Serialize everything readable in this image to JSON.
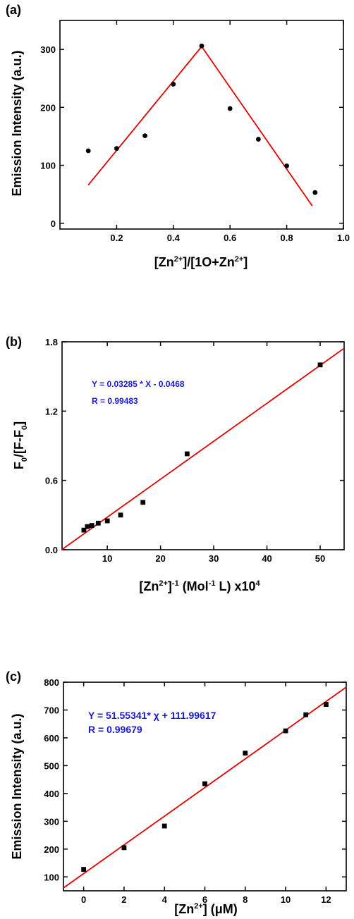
{
  "chart_data": [
    {
      "panel_label": "(a)",
      "type": "scatter",
      "xlabel": "[Zn2+]/[1O+Zn2+]",
      "ylabel": "Emission Intensity (a.u.)",
      "xlim": [
        0.0,
        1.0
      ],
      "ylim": [
        -10,
        350
      ],
      "xticks": [
        0.2,
        0.4,
        0.6,
        0.8,
        1.0
      ],
      "yticks": [
        0,
        100,
        200,
        300
      ],
      "marker": "circle",
      "series": [
        {
          "x": [
            0.1,
            0.2,
            0.3,
            0.4,
            0.5,
            0.6,
            0.7,
            0.8,
            0.9
          ],
          "y": [
            125,
            129,
            151,
            240,
            306,
            198,
            145,
            99,
            53
          ]
        }
      ],
      "fit_lines": [
        {
          "x": [
            0.1,
            0.5
          ],
          "y": [
            66,
            305
          ],
          "color": "#e00000"
        },
        {
          "x": [
            0.5,
            0.89
          ],
          "y": [
            305,
            30
          ],
          "color": "#e00000"
        }
      ],
      "annotations": []
    },
    {
      "panel_label": "(b)",
      "type": "scatter",
      "xlabel": "[Zn2+]-1 (Mol-1 L) x104",
      "ylabel": "F0/[F-F0]",
      "xlim": [
        1.5,
        54.5
      ],
      "ylim": [
        0.0,
        1.8
      ],
      "xticks": [
        10,
        20,
        30,
        40,
        50
      ],
      "yticks": [
        0.0,
        0.6,
        1.2,
        1.8
      ],
      "marker": "square",
      "series": [
        {
          "x": [
            5.6,
            6.25,
            7.1,
            8.3,
            10,
            12.5,
            16.7,
            25,
            50
          ],
          "y": [
            0.17,
            0.2,
            0.21,
            0.23,
            0.25,
            0.3,
            0.41,
            0.83,
            1.6
          ]
        }
      ],
      "fit_lines": [
        {
          "x": [
            1.5,
            54.5
          ],
          "y": [
            0.0025,
            1.744
          ],
          "color": "#e00000"
        }
      ],
      "annotations": [
        "Y = 0.03285 * X - 0.0468",
        "R = 0.99483"
      ]
    },
    {
      "panel_label": "(c)",
      "type": "scatter",
      "xlabel": "[Zn2+] (μM)",
      "ylabel": "Emission Intensity (a.u.)",
      "xlim": [
        -1,
        13
      ],
      "ylim": [
        50,
        800
      ],
      "xticks": [
        0,
        2,
        4,
        6,
        8,
        10,
        12
      ],
      "yticks": [
        100,
        200,
        300,
        400,
        500,
        600,
        700,
        800
      ],
      "marker": "square",
      "series": [
        {
          "x": [
            0,
            2,
            4,
            6,
            8,
            10,
            11,
            12
          ],
          "y": [
            127,
            205,
            283,
            435,
            545,
            625,
            683,
            720
          ]
        }
      ],
      "fit_lines": [
        {
          "x": [
            -1,
            13
          ],
          "y": [
            60.4,
            782.2
          ],
          "color": "#e00000"
        }
      ],
      "annotations": [
        "Y = 51.55341* χ + 111.99617",
        "R = 0.99679"
      ]
    }
  ]
}
